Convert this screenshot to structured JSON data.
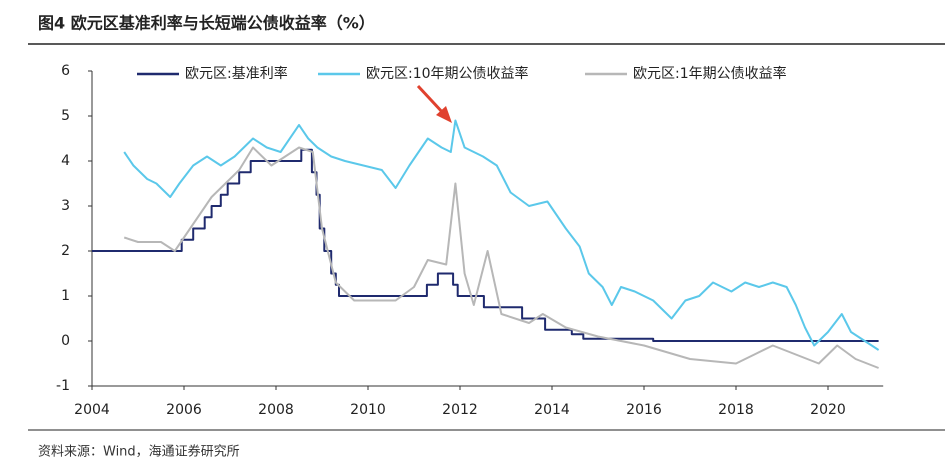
{
  "chart_data": {
    "type": "line",
    "title": "图4  欧元区基准利率与长短端公债收益率（%）",
    "source": "资料来源：Wind，海通证券研究所",
    "xlim": [
      2004,
      2021.2
    ],
    "xticks": [
      2004,
      2006,
      2008,
      2010,
      2012,
      2014,
      2016,
      2018,
      2020
    ],
    "ylim": [
      -1,
      6
    ],
    "yticks": [
      -1,
      0,
      1,
      2,
      3,
      4,
      5,
      6
    ],
    "series": [
      {
        "name": "欧元区:基准利率",
        "color": "#1f2a6e",
        "x": [
          2004,
          2005.95,
          2005.95,
          2006.2,
          2006.2,
          2006.45,
          2006.45,
          2006.6,
          2006.6,
          2006.8,
          2006.8,
          2006.95,
          2006.95,
          2007.2,
          2007.2,
          2007.45,
          2007.45,
          2008.55,
          2008.55,
          2008.78,
          2008.78,
          2008.88,
          2008.88,
          2008.95,
          2008.95,
          2009.05,
          2009.05,
          2009.2,
          2009.2,
          2009.3,
          2009.3,
          2009.37,
          2009.37,
          2011.28,
          2011.28,
          2011.52,
          2011.52,
          2011.85,
          2011.85,
          2011.95,
          2011.95,
          2012.52,
          2012.52,
          2013.35,
          2013.35,
          2013.85,
          2013.85,
          2014.43,
          2014.43,
          2014.68,
          2014.68,
          2016.2,
          2016.2,
          2021.1
        ],
        "values": [
          2,
          2,
          2.25,
          2.25,
          2.5,
          2.5,
          2.75,
          2.75,
          3,
          3,
          3.25,
          3.25,
          3.5,
          3.5,
          3.75,
          3.75,
          4,
          4,
          4.25,
          4.25,
          3.75,
          3.75,
          3.25,
          3.25,
          2.5,
          2.5,
          2,
          2,
          1.5,
          1.5,
          1.25,
          1.25,
          1,
          1,
          1.25,
          1.25,
          1.5,
          1.5,
          1.25,
          1.25,
          1,
          1,
          0.75,
          0.75,
          0.5,
          0.5,
          0.25,
          0.25,
          0.15,
          0.15,
          0.05,
          0.05,
          0,
          0
        ]
      },
      {
        "name": "欧元区:10年期公债收益率",
        "color": "#5bc8ea",
        "x": [
          2004.7,
          2004.9,
          2005.2,
          2005.4,
          2005.7,
          2005.9,
          2006.2,
          2006.5,
          2006.8,
          2007.1,
          2007.5,
          2007.8,
          2008.1,
          2008.5,
          2008.7,
          2008.9,
          2009.2,
          2009.5,
          2009.9,
          2010.3,
          2010.6,
          2010.9,
          2011.3,
          2011.6,
          2011.8,
          2011.9,
          2012.1,
          2012.5,
          2012.8,
          2013.1,
          2013.5,
          2013.9,
          2014.3,
          2014.6,
          2014.8,
          2015.1,
          2015.3,
          2015.5,
          2015.8,
          2016.2,
          2016.6,
          2016.9,
          2017.2,
          2017.5,
          2017.9,
          2018.2,
          2018.5,
          2018.8,
          2019.1,
          2019.3,
          2019.5,
          2019.7,
          2020,
          2020.3,
          2020.5,
          2020.8,
          2021.1
        ],
        "values": [
          4.2,
          3.9,
          3.6,
          3.5,
          3.2,
          3.5,
          3.9,
          4.1,
          3.9,
          4.1,
          4.5,
          4.3,
          4.2,
          4.8,
          4.5,
          4.3,
          4.1,
          4,
          3.9,
          3.8,
          3.4,
          3.9,
          4.5,
          4.3,
          4.2,
          4.9,
          4.3,
          4.1,
          3.9,
          3.3,
          3.0,
          3.1,
          2.5,
          2.1,
          1.5,
          1.2,
          0.8,
          1.2,
          1.1,
          0.9,
          0.5,
          0.9,
          1.0,
          1.3,
          1.1,
          1.3,
          1.2,
          1.3,
          1.2,
          0.8,
          0.3,
          -0.1,
          0.2,
          0.6,
          0.2,
          0.0,
          -0.2
        ]
      },
      {
        "name": "欧元区:1年期公债收益率",
        "color": "#b7b7b7",
        "x": [
          2004.7,
          2005.0,
          2005.5,
          2005.8,
          2006.2,
          2006.6,
          2007.2,
          2007.5,
          2007.9,
          2008.2,
          2008.5,
          2008.8,
          2009.0,
          2009.3,
          2009.7,
          2010.3,
          2010.6,
          2011.0,
          2011.3,
          2011.7,
          2011.9,
          2012.1,
          2012.3,
          2012.6,
          2012.9,
          2013.5,
          2013.8,
          2014.3,
          2015.0,
          2016.0,
          2017.0,
          2018.0,
          2018.4,
          2018.8,
          2019.3,
          2019.8,
          2020.2,
          2020.6,
          2021.1
        ],
        "values": [
          2.3,
          2.2,
          2.2,
          2.0,
          2.6,
          3.2,
          3.8,
          4.3,
          3.9,
          4.1,
          4.3,
          4.2,
          2.5,
          1.3,
          0.9,
          0.9,
          0.9,
          1.2,
          1.8,
          1.7,
          3.5,
          1.5,
          0.8,
          2.0,
          0.6,
          0.4,
          0.6,
          0.3,
          0.1,
          -0.1,
          -0.4,
          -0.5,
          -0.3,
          -0.1,
          -0.3,
          -0.5,
          -0.1,
          -0.4,
          -0.6
        ]
      }
    ]
  }
}
